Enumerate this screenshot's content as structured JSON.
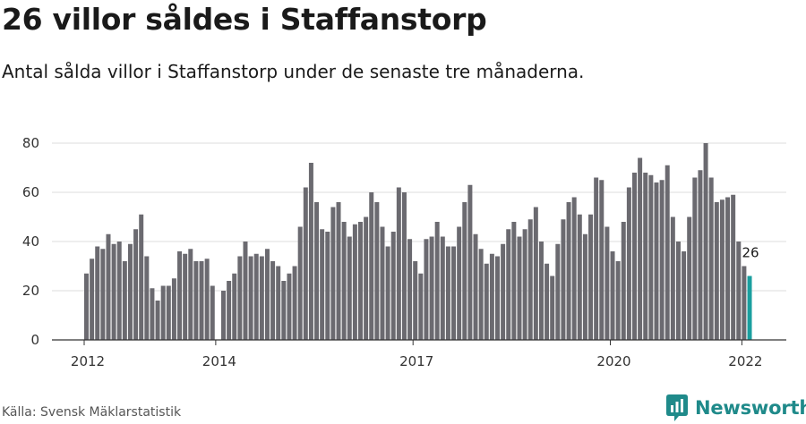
{
  "chart_data": {
    "type": "bar",
    "title": "26 villor såldes i Staffanstorp",
    "subtitle": "Antal sålda villor i Staffanstorp under de senaste tre månaderna.",
    "source": "Källa: Svensk Mäklarstatistik",
    "brand": "Newsworthy",
    "ylim": [
      0,
      80
    ],
    "y_ticks": [
      0,
      20,
      40,
      60,
      80
    ],
    "x_ticks": [
      {
        "label": "2012",
        "index": 0
      },
      {
        "label": "2014",
        "index": 24
      },
      {
        "label": "2017",
        "index": 60
      },
      {
        "label": "2020",
        "index": 96
      },
      {
        "label": "2022",
        "index": 120
      }
    ],
    "grid": true,
    "annotation": {
      "label": "26",
      "index": 121
    },
    "colors": {
      "bar": "#6b6a70",
      "highlight": "#1a9f9f",
      "grid": "#dddddd",
      "axis": "#333333",
      "brand": "#1f8a8a"
    },
    "values": [
      27,
      33,
      38,
      37,
      43,
      39,
      40,
      32,
      39,
      45,
      51,
      34,
      21,
      16,
      22,
      22,
      25,
      36,
      35,
      37,
      32,
      32,
      33,
      22,
      0,
      20,
      24,
      27,
      34,
      40,
      34,
      35,
      34,
      37,
      32,
      30,
      24,
      27,
      30,
      46,
      62,
      72,
      56,
      45,
      44,
      54,
      56,
      48,
      42,
      47,
      48,
      50,
      60,
      56,
      46,
      38,
      44,
      62,
      60,
      41,
      32,
      27,
      41,
      42,
      48,
      42,
      38,
      38,
      46,
      56,
      63,
      43,
      37,
      31,
      35,
      34,
      39,
      45,
      48,
      42,
      45,
      49,
      54,
      40,
      31,
      26,
      39,
      49,
      56,
      58,
      51,
      43,
      51,
      66,
      65,
      46,
      36,
      32,
      48,
      62,
      68,
      74,
      68,
      67,
      64,
      65,
      71,
      50,
      40,
      36,
      50,
      66,
      69,
      80,
      66,
      56,
      57,
      58,
      59,
      40,
      30,
      26
    ]
  }
}
